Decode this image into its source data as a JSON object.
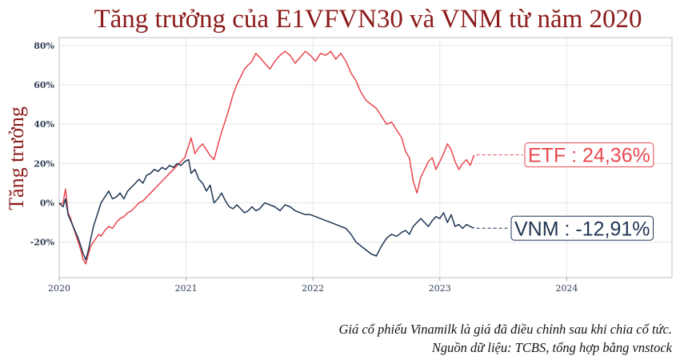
{
  "chart_data": {
    "type": "line",
    "title": "Tăng trưởng của E1VFVN30 và VNM từ năm 2020",
    "ylabel": "Tăng trưởng",
    "xlabel": "",
    "xlim": [
      2020.0,
      2024.83
    ],
    "ylim": [
      -38,
      84
    ],
    "x_ticks": [
      {
        "value": 2020,
        "label": "2020"
      },
      {
        "value": 2021,
        "label": "2021"
      },
      {
        "value": 2022,
        "label": "2022"
      },
      {
        "value": 2023,
        "label": "2023"
      },
      {
        "value": 2024,
        "label": "2024"
      }
    ],
    "y_ticks": [
      {
        "value": 80,
        "label": "80%"
      },
      {
        "value": 60,
        "label": "60%"
      },
      {
        "value": 40,
        "label": "40%"
      },
      {
        "value": 20,
        "label": "20%"
      },
      {
        "value": 0,
        "label": "0%"
      },
      {
        "value": -20,
        "label": "-20%"
      }
    ],
    "grid": true,
    "series": [
      {
        "name": "ETF",
        "color": "#e8474f",
        "end_label": "ETF : 24,36%",
        "end_value": 24.36,
        "x": [
          2020.0,
          2020.03,
          2020.05,
          2020.07,
          2020.09,
          2020.11,
          2020.13,
          2020.15,
          2020.17,
          2020.19,
          2020.21,
          2020.23,
          2020.25,
          2020.27,
          2020.29,
          2020.31,
          2020.33,
          2020.36,
          2020.39,
          2020.42,
          2020.45,
          2020.48,
          2020.51,
          2020.54,
          2020.57,
          2020.6,
          2020.63,
          2020.66,
          2020.69,
          2020.72,
          2020.75,
          2020.78,
          2020.81,
          2020.84,
          2020.87,
          2020.9,
          2020.93,
          2020.96,
          2020.99,
          2021.02,
          2021.04,
          2021.07,
          2021.1,
          2021.13,
          2021.16,
          2021.19,
          2021.22,
          2021.25,
          2021.28,
          2021.31,
          2021.34,
          2021.37,
          2021.4,
          2021.43,
          2021.46,
          2021.49,
          2021.52,
          2021.55,
          2021.58,
          2021.62,
          2021.66,
          2021.7,
          2021.74,
          2021.78,
          2021.82,
          2021.86,
          2021.9,
          2021.94,
          2021.98,
          2022.02,
          2022.06,
          2022.1,
          2022.14,
          2022.18,
          2022.22,
          2022.26,
          2022.3,
          2022.34,
          2022.38,
          2022.42,
          2022.46,
          2022.5,
          2022.54,
          2022.58,
          2022.62,
          2022.66,
          2022.7,
          2022.73,
          2022.76,
          2022.79,
          2022.82,
          2022.85,
          2022.88,
          2022.91,
          2022.94,
          2022.97,
          2023.0,
          2023.03,
          2023.06,
          2023.09,
          2023.12,
          2023.15,
          2023.18,
          2023.21,
          2023.24,
          2023.27
        ],
        "values": [
          -1,
          0,
          7,
          -5,
          -8,
          -12,
          -16,
          -20,
          -24,
          -29,
          -31,
          -26,
          -22,
          -20,
          -18,
          -16,
          -17,
          -14,
          -12,
          -13,
          -10,
          -8,
          -7,
          -5,
          -4,
          -2,
          0,
          1,
          3,
          5,
          7,
          9,
          11,
          13,
          15,
          17,
          19,
          21,
          23,
          29,
          33,
          25,
          28,
          30,
          27,
          24,
          22,
          29,
          36,
          42,
          48,
          55,
          60,
          64,
          68,
          70,
          72,
          76,
          74,
          71,
          68,
          72,
          75,
          77,
          75,
          71,
          74,
          77,
          75,
          72,
          76,
          75,
          77,
          73,
          76,
          72,
          66,
          62,
          56,
          52,
          50,
          48,
          44,
          40,
          41,
          37,
          33,
          26,
          23,
          11,
          5,
          13,
          17,
          21,
          23,
          17,
          21,
          25,
          30,
          27,
          21,
          17,
          20,
          22,
          19,
          24.36
        ]
      },
      {
        "name": "VNM",
        "color": "#1f3553",
        "end_label": "VNM : -12,91%",
        "end_value": -12.91,
        "x": [
          2020.0,
          2020.03,
          2020.05,
          2020.07,
          2020.09,
          2020.11,
          2020.13,
          2020.15,
          2020.17,
          2020.19,
          2020.21,
          2020.23,
          2020.25,
          2020.27,
          2020.29,
          2020.31,
          2020.33,
          2020.36,
          2020.39,
          2020.42,
          2020.45,
          2020.48,
          2020.51,
          2020.54,
          2020.57,
          2020.6,
          2020.63,
          2020.66,
          2020.69,
          2020.72,
          2020.75,
          2020.78,
          2020.81,
          2020.84,
          2020.87,
          2020.9,
          2020.93,
          2020.96,
          2020.99,
          2021.02,
          2021.04,
          2021.07,
          2021.1,
          2021.13,
          2021.16,
          2021.19,
          2021.22,
          2021.25,
          2021.28,
          2021.31,
          2021.34,
          2021.37,
          2021.4,
          2021.43,
          2021.46,
          2021.49,
          2021.52,
          2021.55,
          2021.58,
          2021.62,
          2021.66,
          2021.7,
          2021.74,
          2021.78,
          2021.82,
          2021.86,
          2021.9,
          2021.94,
          2021.98,
          2022.02,
          2022.06,
          2022.1,
          2022.14,
          2022.18,
          2022.22,
          2022.26,
          2022.3,
          2022.34,
          2022.38,
          2022.42,
          2022.46,
          2022.5,
          2022.54,
          2022.58,
          2022.62,
          2022.66,
          2022.7,
          2022.73,
          2022.76,
          2022.79,
          2022.82,
          2022.85,
          2022.88,
          2022.91,
          2022.94,
          2022.97,
          2023.0,
          2023.03,
          2023.06,
          2023.09,
          2023.12,
          2023.15,
          2023.18,
          2023.21,
          2023.24,
          2023.27
        ],
        "values": [
          0,
          -2,
          2,
          -6,
          -9,
          -12,
          -15,
          -18,
          -22,
          -26,
          -29,
          -24,
          -18,
          -12,
          -8,
          -4,
          0,
          3,
          6,
          2,
          3,
          5,
          2,
          6,
          8,
          10,
          12,
          10,
          14,
          15,
          17,
          16,
          18,
          17,
          19,
          18,
          20,
          19,
          21,
          22,
          15,
          17,
          12,
          10,
          6,
          9,
          0,
          2,
          5,
          1,
          -2,
          -3,
          -1,
          -3,
          -5,
          -4,
          -2,
          -4,
          -3,
          0,
          -1,
          -2,
          -4,
          -1,
          -2,
          -4,
          -5,
          -6,
          -6,
          -7,
          -8,
          -9,
          -10,
          -11,
          -12,
          -13,
          -16,
          -20,
          -22,
          -24,
          -26,
          -27,
          -22,
          -18,
          -16,
          -17,
          -15,
          -14,
          -16,
          -12,
          -10,
          -8,
          -10,
          -12,
          -9,
          -7,
          -8,
          -5,
          -10,
          -6,
          -12,
          -11,
          -13,
          -11,
          -12,
          -12.91
        ]
      }
    ],
    "annotations": [
      "Giá cổ phiếu Vinamilk là giá đã điều chỉnh sau khi chia cổ tức.",
      "Nguồn dữ liệu: TCBS, tổng hợp bằng vnstock"
    ]
  }
}
